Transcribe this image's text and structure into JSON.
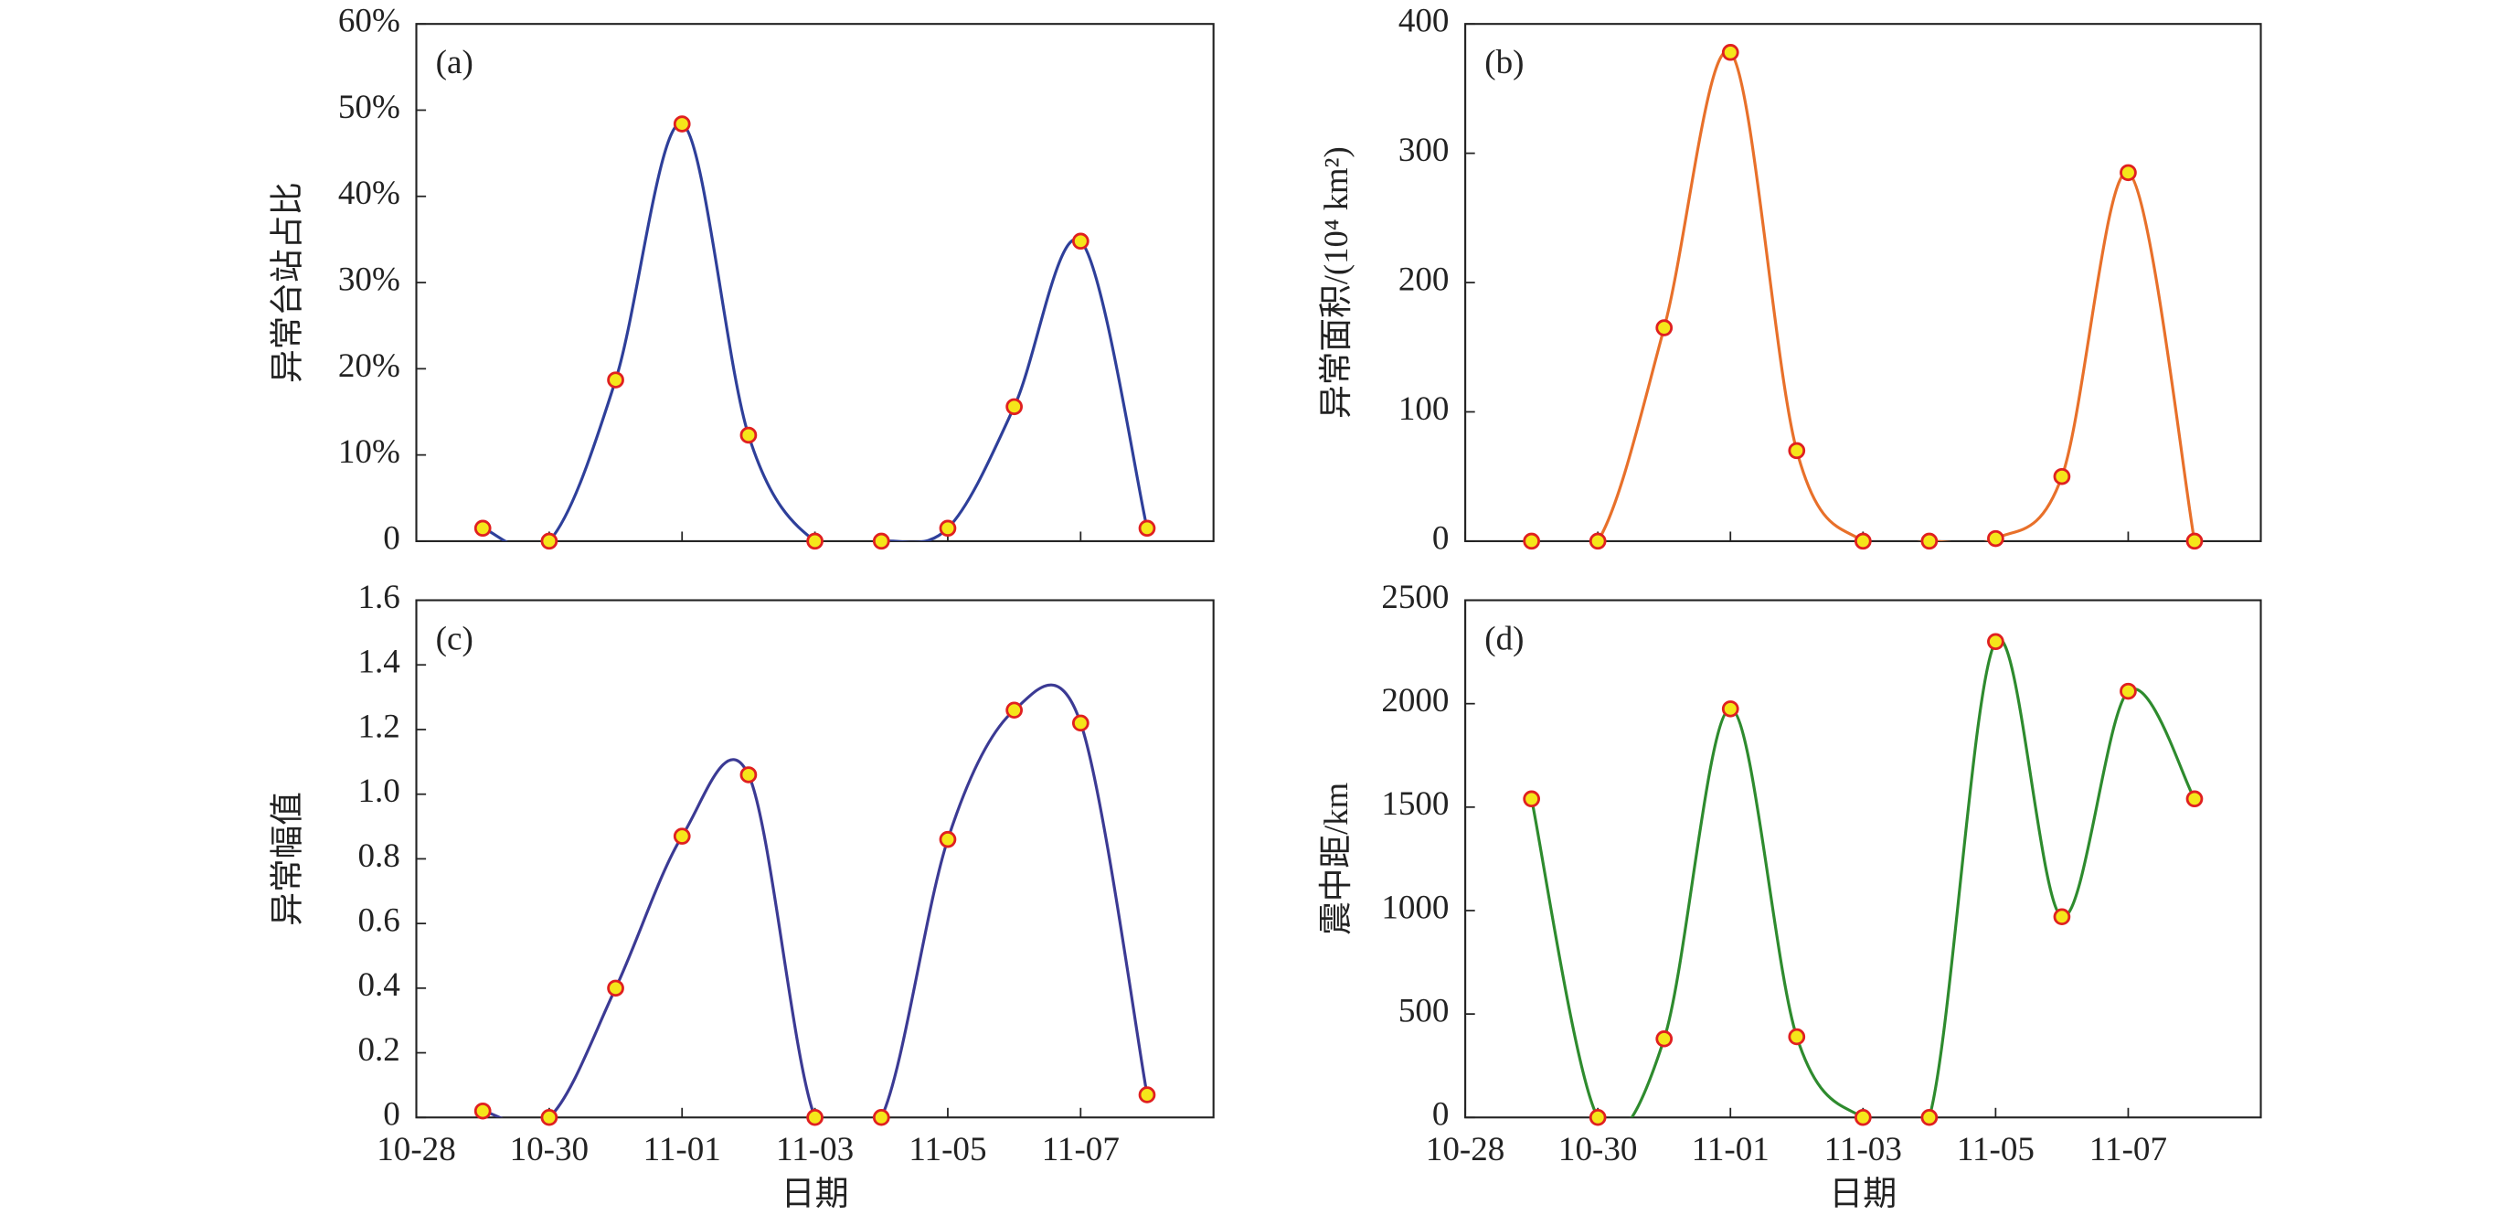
{
  "chart_data": [
    {
      "type": "line",
      "panel_label": "(a)",
      "ylabel": "异常台站占比",
      "categories": [
        null,
        null,
        null,
        null,
        null,
        null,
        null,
        null,
        null,
        null,
        null,
        null,
        null
      ],
      "series": [
        {
          "color": "#2e3f9a",
          "marker_fill": "#f5e61a",
          "marker_edge": "#e02020",
          "values": [
            null,
            1.5,
            0,
            18.7,
            48.4,
            12.3,
            0,
            0,
            1.5,
            15.6,
            34.8,
            1.5,
            null
          ]
        }
      ],
      "ylim": [
        0,
        60
      ],
      "yticks": [
        0,
        {
          "value": 10,
          "label": "10%"
        },
        {
          "value": 20,
          "label": "20%"
        },
        {
          "value": 30,
          "label": "30%"
        },
        {
          "value": 40,
          "label": "40%"
        },
        {
          "value": 50,
          "label": "50%"
        },
        {
          "value": 60,
          "label": "60%"
        }
      ]
    },
    {
      "type": "line",
      "panel_label": "(b)",
      "ylabel": "异常面积/(10⁴ km²)",
      "categories": [
        null,
        null,
        null,
        null,
        null,
        null,
        null,
        null,
        null,
        null,
        null,
        null,
        null
      ],
      "series": [
        {
          "color": "#e8702a",
          "marker_fill": "#f5e61a",
          "marker_edge": "#e02020",
          "values": [
            null,
            0,
            0,
            165,
            378,
            70,
            0,
            0,
            2,
            50,
            285,
            0,
            null
          ]
        }
      ],
      "ylim": [
        0,
        400
      ],
      "yticks": [
        0,
        100,
        200,
        300,
        400
      ]
    },
    {
      "type": "line",
      "panel_label": "(c)",
      "ylabel": "异常幅值",
      "xlabel": "日期",
      "categories": [
        "10-28",
        null,
        "10-30",
        null,
        "11-01",
        null,
        "11-03",
        null,
        "11-05",
        null,
        "11-07",
        null,
        null
      ],
      "series": [
        {
          "color": "#3b3a94",
          "marker_fill": "#f5e61a",
          "marker_edge": "#e02020",
          "values": [
            null,
            0.02,
            0,
            0.4,
            0.87,
            1.06,
            0,
            0,
            0.86,
            1.26,
            1.22,
            0.07,
            null
          ]
        }
      ],
      "ylim": [
        0,
        1.6
      ],
      "yticks": [
        0,
        0.2,
        0.4,
        0.6,
        0.8,
        {
          "value": 1,
          "label": "1.0"
        },
        1.2,
        1.4,
        1.6
      ]
    },
    {
      "type": "line",
      "panel_label": "(d)",
      "ylabel": "震中距/km",
      "xlabel": "日期",
      "categories": [
        "10-28",
        null,
        "10-30",
        null,
        "11-01",
        null,
        "11-03",
        null,
        "11-05",
        null,
        "11-07",
        null,
        null
      ],
      "series": [
        {
          "color": "#2e8b2e",
          "marker_fill": "#f5e61a",
          "marker_edge": "#e02020",
          "values": [
            null,
            1540,
            0,
            380,
            1975,
            390,
            0,
            0,
            2300,
            970,
            2060,
            1540,
            null
          ]
        }
      ],
      "ylim": [
        0,
        2500
      ],
      "yticks": [
        0,
        500,
        1000,
        1500,
        2000,
        2500
      ]
    }
  ]
}
